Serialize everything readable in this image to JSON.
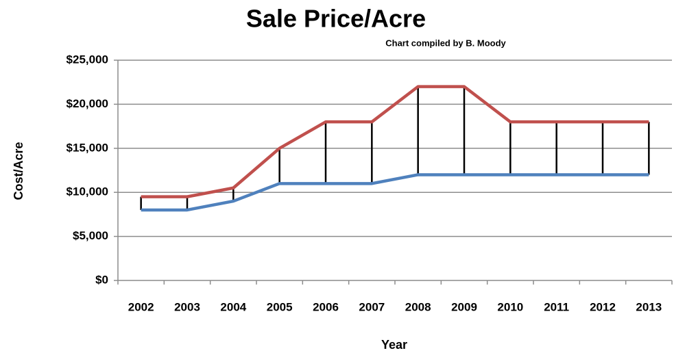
{
  "chart_data": {
    "type": "line",
    "title": "Sale Price/Acre",
    "subtitle": "Chart compiled by B. Moody",
    "x_label": "Year",
    "y_label": "Cost/Acre",
    "categories": [
      "2002",
      "2003",
      "2004",
      "2005",
      "2006",
      "2007",
      "2008",
      "2009",
      "2010",
      "2011",
      "2012",
      "2013"
    ],
    "series": [
      {
        "color": "#c0504d",
        "values": [
          9500,
          9500,
          10500,
          15000,
          18000,
          18000,
          22000,
          22000,
          18000,
          18000,
          18000,
          18000
        ]
      },
      {
        "color": "#4f81bd",
        "values": [
          8000,
          8000,
          9000,
          11000,
          11000,
          11000,
          12000,
          12000,
          12000,
          12000,
          12000,
          12000
        ]
      }
    ],
    "high_low_lines": true,
    "ylim": [
      0,
      25000
    ],
    "yticks": [
      {
        "value": 0,
        "label": "$0"
      },
      {
        "value": 5000,
        "label": "$5,000"
      },
      {
        "value": 10000,
        "label": "$10,000"
      },
      {
        "value": 15000,
        "label": "$15,000"
      },
      {
        "value": 20000,
        "label": "$20,000"
      },
      {
        "value": 25000,
        "label": "$25,000"
      }
    ],
    "grid": true
  }
}
